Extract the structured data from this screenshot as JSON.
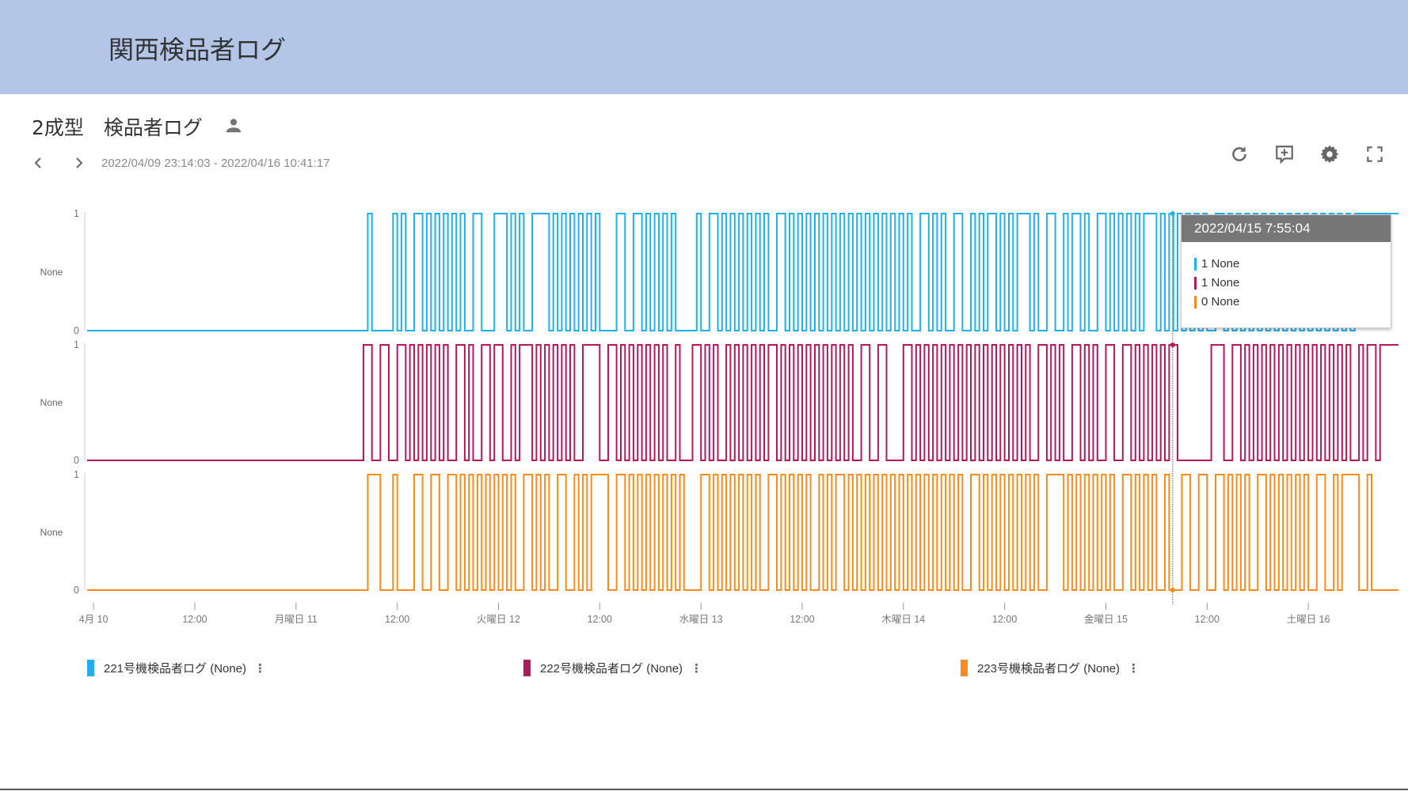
{
  "header": {
    "title": "関西検品者ログ"
  },
  "panel": {
    "title": "2成型　検品者ログ",
    "date_range": "2022/04/09 23:14:03 - 2022/04/16 10:41:17",
    "icons": {
      "owner": "person-icon",
      "prev": "chevron-left-icon",
      "next": "chevron-right-icon",
      "refresh": "refresh-icon",
      "comment": "add-comment-icon",
      "settings": "gear-icon",
      "fullscreen": "fullscreen-icon"
    }
  },
  "tooltip": {
    "time": "2022/04/15 7:55:04",
    "rows": [
      {
        "text": "1 None",
        "color": "#1fb0f0"
      },
      {
        "text": "1 None",
        "color": "#b5175e"
      },
      {
        "text": "0 None",
        "color": "#ff8a1c"
      }
    ]
  },
  "chart_data": {
    "type": "line",
    "step": true,
    "xlim": [
      "2022-04-09T23:14:03",
      "2022-04-16T10:41:17"
    ],
    "x_tick_labels": [
      "4月 10",
      "12:00",
      "月曜日 11",
      "12:00",
      "火曜日 12",
      "12:00",
      "水曜日 13",
      "12:00",
      "木曜日 14",
      "12:00",
      "金曜日 15",
      "12:00",
      "土曜日 16"
    ],
    "x_ticks": [
      "2022-04-10T00:00",
      "2022-04-10T12:00",
      "2022-04-11T00:00",
      "2022-04-11T12:00",
      "2022-04-12T00:00",
      "2022-04-12T12:00",
      "2022-04-13T00:00",
      "2022-04-13T12:00",
      "2022-04-14T00:00",
      "2022-04-14T12:00",
      "2022-04-15T00:00",
      "2022-04-15T12:00",
      "2022-04-16T00:00"
    ],
    "ylim": [
      0,
      1
    ],
    "y_tick_labels": [
      "1",
      "0"
    ],
    "ylabel": "None",
    "sample_start": "2022-04-10T00:00",
    "sample_interval_minutes": 30,
    "cursor_time": "2022-04-15T07:55:04",
    "series": [
      {
        "name": "221号機検品者ログ (None)",
        "color": "#1fb0f0",
        "samples": "00000000000000000000000000000000000000000000000000000000000000000100000101001101010101010011000111010100111101010101010100001100110101010100000100110101010101010011010101010101010101010101010101001101010011001010110101011101001100101101001101010101011101010101010100110101010101010101010101010101010111"
      },
      {
        "name": "222号機検品者ログ (None)",
        "color": "#b5175e",
        "samples": "00000000000000000000000000000000000000000000000000000000000000001100110011010101010100110100110110010111010101010100111100110101010101010010001101010010101010101101010101010101010100110011000011010101010101010101010101010100110101001101010011001101010101011000000001110011010101010101010101010101010010110111"
      },
      {
        "name": "223号機検品者ログ (None)",
        "color": "#ff8a1c",
        "samples": "00000000000000000000000000000000000000000000000000000000000000000111000100001100110011010101010101010011010100110010101111001101010101010101000011010101010101001101010101001010110101010101010101010101010101001101010101010101001111010101010101001101010100100011001100110101010011010101010100110010111100100000"
      }
    ],
    "legend": "bottom"
  }
}
